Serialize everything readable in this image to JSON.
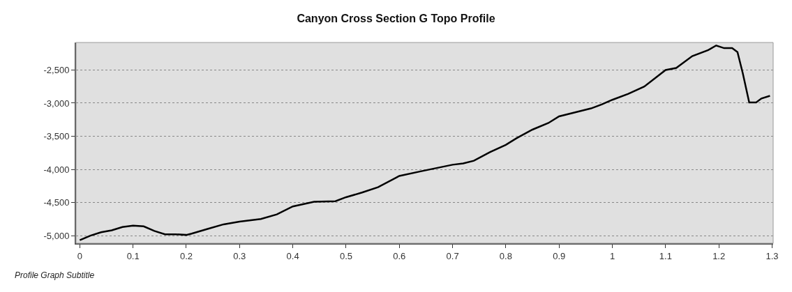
{
  "chart_data": {
    "type": "line",
    "title": "Canyon Cross Section G Topo Profile",
    "annotations": [
      "Profile Graph Subtitle"
    ],
    "x": [
      0,
      0.02,
      0.04,
      0.06,
      0.08,
      0.1,
      0.12,
      0.14,
      0.16,
      0.18,
      0.2,
      0.21,
      0.24,
      0.27,
      0.3,
      0.34,
      0.37,
      0.4,
      0.44,
      0.48,
      0.5,
      0.53,
      0.56,
      0.6,
      0.64,
      0.67,
      0.7,
      0.72,
      0.74,
      0.77,
      0.8,
      0.82,
      0.85,
      0.88,
      0.9,
      0.93,
      0.96,
      0.98,
      1.0,
      1.03,
      1.06,
      1.1,
      1.12,
      1.15,
      1.18,
      1.195,
      1.21,
      1.225,
      1.235,
      1.245,
      1.257,
      1.27,
      1.28,
      1.296
    ],
    "series": [
      {
        "color": "#000000",
        "values": [
          -5070,
          -5000,
          -4950,
          -4920,
          -4870,
          -4850,
          -4860,
          -4930,
          -4980,
          -4980,
          -4990,
          -4970,
          -4900,
          -4830,
          -4790,
          -4750,
          -4680,
          -4560,
          -4490,
          -4480,
          -4420,
          -4350,
          -4270,
          -4100,
          -4030,
          -3980,
          -3930,
          -3910,
          -3870,
          -3740,
          -3630,
          -3530,
          -3400,
          -3300,
          -3200,
          -3140,
          -3080,
          -3020,
          -2950,
          -2860,
          -2750,
          -2500,
          -2470,
          -2290,
          -2200,
          -2130,
          -2170,
          -2170,
          -2230,
          -2550,
          -2990,
          -2990,
          -2930,
          -2890
        ]
      }
    ],
    "xlim": [
      -0.007,
      1.302
    ],
    "ylim": [
      -5115,
      -2085
    ],
    "xticks": [
      0,
      0.1,
      0.2,
      0.3,
      0.4,
      0.5,
      0.6,
      0.7,
      0.8,
      0.9,
      1,
      1.1,
      1.2,
      1.3
    ],
    "yticks": [
      {
        "value": -5000,
        "label": "-5,000"
      },
      {
        "value": -4500,
        "label": "-4,500"
      },
      {
        "value": -4000,
        "label": "-4,000"
      },
      {
        "value": -3500,
        "label": "-3,500"
      },
      {
        "value": -3000,
        "label": "-3,000"
      },
      {
        "value": -2500,
        "label": "-2,500"
      }
    ],
    "grid": "y",
    "marker": "none",
    "line_style": "solid"
  }
}
